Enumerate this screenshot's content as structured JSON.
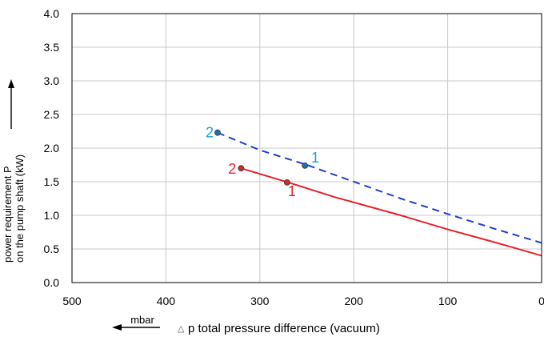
{
  "chart_data": {
    "type": "line",
    "xlabel": "p total pressure difference (vacuum)",
    "xlabel_symbol": "△",
    "xunit": "mbar",
    "ylabel_line1": "power requirement P",
    "ylabel_line2": "on the pump shaft (kW)",
    "xlim": [
      500,
      0
    ],
    "ylim": [
      0,
      4.0
    ],
    "x_ticks": [
      "500",
      "400",
      "300",
      "200",
      "100",
      "0"
    ],
    "y_ticks": [
      "0.0",
      "0.5",
      "1.0",
      "1.5",
      "2.0",
      "2.5",
      "3.0",
      "3.5",
      "4.0"
    ],
    "x_tick_values": [
      500,
      400,
      300,
      200,
      100,
      0
    ],
    "y_tick_values": [
      0,
      0.5,
      1.0,
      1.5,
      2.0,
      2.5,
      3.0,
      3.5,
      4.0
    ],
    "grid": true,
    "series": [
      {
        "color": "#1f3fd6",
        "style": "dashed",
        "marker_color": "#1f6fb5",
        "label_color": "#1aa3d6",
        "x": [
          345,
          300,
          250,
          200,
          150,
          100,
          50,
          0
        ],
        "y": [
          2.23,
          1.97,
          1.75,
          1.5,
          1.25,
          1.02,
          0.8,
          0.59
        ],
        "points": [
          {
            "label": "2",
            "x": 345,
            "y": 2.23
          },
          {
            "label": "1",
            "x": 252,
            "y": 1.74
          }
        ]
      },
      {
        "color": "#e8202a",
        "style": "solid",
        "marker_color": "#c8302a",
        "label_color": "#e8202a",
        "x": [
          320,
          270,
          220,
          150,
          100,
          50,
          0
        ],
        "y": [
          1.7,
          1.49,
          1.27,
          1.0,
          0.79,
          0.6,
          0.4
        ],
        "points": [
          {
            "label": "2",
            "x": 320,
            "y": 1.7
          },
          {
            "label": "1",
            "x": 271,
            "y": 1.49
          }
        ]
      }
    ]
  }
}
